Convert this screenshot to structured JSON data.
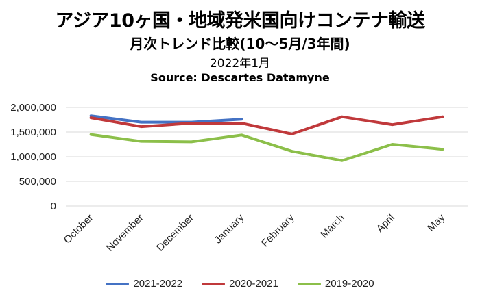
{
  "chart_data": {
    "type": "line",
    "title": "アジア10ヶ国・地域発米国向けコンテナ輸送",
    "subtitle": "月次トレンド比較(10～5月/3年間)",
    "date": "2022年1月",
    "source": "Source: Descartes Datamyne",
    "categories": [
      "October",
      "November",
      "December",
      "January",
      "February",
      "March",
      "April",
      "May"
    ],
    "y_ticks": [
      "2,000,000",
      "1,500,000",
      "1,000,000",
      "500,000",
      "0"
    ],
    "ylim": [
      0,
      2000000
    ],
    "grid": true,
    "legend_position": "bottom",
    "series": [
      {
        "name": "2021-2022",
        "color": "#4472c4",
        "values": [
          1830000,
          1700000,
          1700000,
          1760000,
          null,
          null,
          null,
          null
        ]
      },
      {
        "name": "2020-2021",
        "color": "#c0393b",
        "values": [
          1790000,
          1610000,
          1680000,
          1680000,
          1460000,
          1810000,
          1650000,
          1810000
        ]
      },
      {
        "name": "2019-2020",
        "color": "#8cbf4a",
        "values": [
          1450000,
          1310000,
          1300000,
          1440000,
          1110000,
          920000,
          1250000,
          1150000
        ]
      }
    ]
  }
}
